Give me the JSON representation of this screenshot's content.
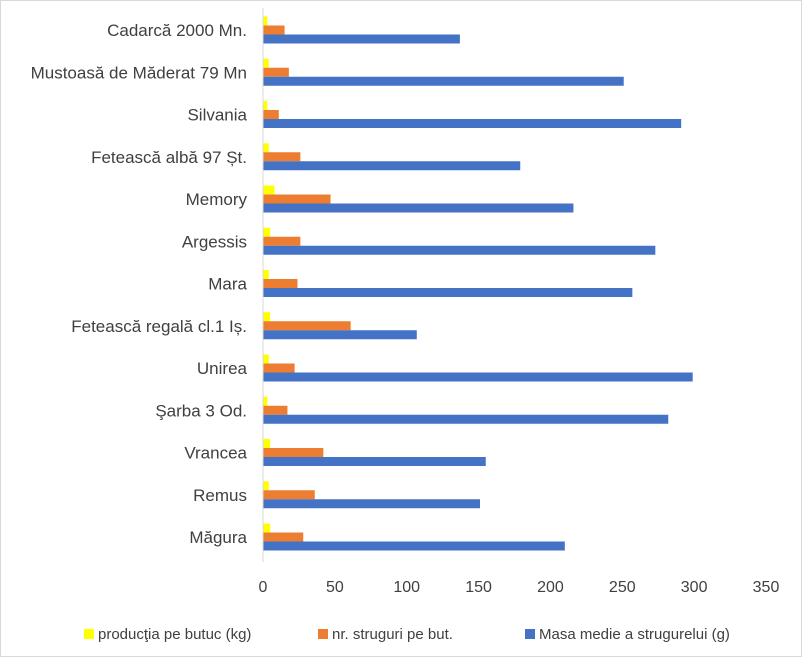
{
  "chart_data": {
    "type": "bar",
    "orientation": "horizontal",
    "categories": [
      "Cadarcă 2000 Mn.",
      "Mustoasă de Măderat 79 Mn",
      "Silvania",
      "Fetească albă 97 Șt.",
      "Memory",
      "Argessis",
      "Mara",
      "Fetească regală cl.1 Iș.",
      "Unirea",
      "Şarba 3 Od.",
      "Vrancea",
      "Remus",
      "Măgura"
    ],
    "series": [
      {
        "name": "producţia pe butuc (kg)",
        "color": "#FFFF00",
        "values": [
          3,
          4,
          3,
          4,
          8,
          5,
          4,
          5,
          4,
          3,
          5,
          4,
          5
        ]
      },
      {
        "name": "nr. struguri pe but.",
        "color": "#ED7D31",
        "values": [
          15,
          18,
          11,
          26,
          47,
          26,
          24,
          61,
          22,
          17,
          42,
          36,
          28
        ]
      },
      {
        "name": "Masa medie a strugurelui (g)",
        "color": "#4472C4",
        "values": [
          137,
          251,
          291,
          179,
          216,
          273,
          257,
          107,
          299,
          282,
          155,
          151,
          210
        ]
      }
    ],
    "xticks": [
      "0",
      "50",
      "100",
      "150",
      "200",
      "250",
      "300",
      "350"
    ],
    "xlim": [
      0,
      350
    ],
    "title": "",
    "xlabel": "",
    "ylabel": "",
    "grid": false,
    "legend_position": "bottom"
  }
}
